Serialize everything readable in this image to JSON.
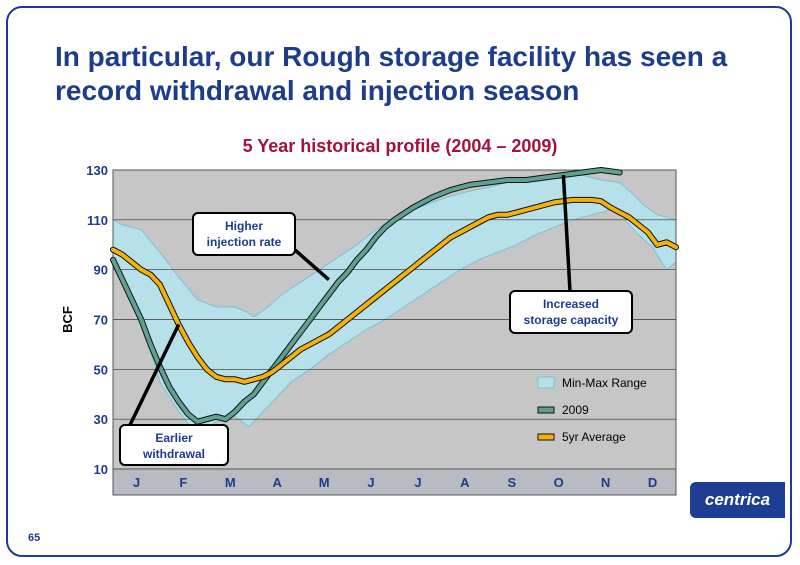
{
  "slide": {
    "title": "In particular, our Rough storage facility has seen a record withdrawal and injection season",
    "page_number": "65",
    "logo_text": "centrica"
  },
  "colors": {
    "accent": "#1d3c8c",
    "chart_title": "#a4123a",
    "plot_bg": "#c6c6c6",
    "range_fill": "#b7e1ea",
    "series_2009": "#5fa191",
    "series_avg": "#f3b00e"
  },
  "chart_data": {
    "type": "line",
    "title": "5 Year historical profile (2004 – 2009)",
    "ylabel": "BCF",
    "xlabel": "",
    "ylim": [
      10,
      130
    ],
    "yticks": [
      10,
      30,
      50,
      70,
      90,
      110,
      130
    ],
    "months": [
      "J",
      "F",
      "M",
      "A",
      "M",
      "J",
      "J",
      "A",
      "S",
      "O",
      "N",
      "D"
    ],
    "xlim": [
      0,
      12
    ],
    "grid": true,
    "legend_position": "bottom-right",
    "legend": [
      {
        "label": "Min-Max Range",
        "marker": "box"
      },
      {
        "label": "2009",
        "marker": "line"
      },
      {
        "label": "5yr Average",
        "marker": "line"
      }
    ],
    "range_max": [
      [
        0,
        110
      ],
      [
        0.2,
        108
      ],
      [
        0.6,
        106
      ],
      [
        1,
        97
      ],
      [
        1.4,
        87
      ],
      [
        1.8,
        78
      ],
      [
        2.2,
        75
      ],
      [
        2.6,
        75
      ],
      [
        2.85,
        73
      ],
      [
        3,
        71
      ],
      [
        3.3,
        75
      ],
      [
        3.6,
        80
      ],
      [
        4,
        85
      ],
      [
        4.4,
        90
      ],
      [
        4.8,
        95
      ],
      [
        5.2,
        100
      ],
      [
        5.6,
        106
      ],
      [
        6,
        111
      ],
      [
        6.4,
        114
      ],
      [
        6.8,
        117
      ],
      [
        7.2,
        119.5
      ],
      [
        7.6,
        121.5
      ],
      [
        8,
        123
      ],
      [
        8.4,
        125
      ],
      [
        8.8,
        126.5
      ],
      [
        9.2,
        127
      ],
      [
        9.6,
        127.5
      ],
      [
        10,
        128
      ],
      [
        10.4,
        126
      ],
      [
        10.8,
        125
      ],
      [
        11.1,
        120
      ],
      [
        11.3,
        116
      ],
      [
        11.6,
        112
      ],
      [
        12,
        110
      ]
    ],
    "range_min": [
      [
        0,
        95
      ],
      [
        0.2,
        85
      ],
      [
        0.5,
        75
      ],
      [
        0.8,
        57
      ],
      [
        1,
        45
      ],
      [
        1.3,
        36
      ],
      [
        1.6,
        28
      ],
      [
        2,
        26
      ],
      [
        2.2,
        29
      ],
      [
        2.4,
        31
      ],
      [
        2.6,
        31
      ],
      [
        2.9,
        27
      ],
      [
        3.1,
        31
      ],
      [
        3.4,
        37
      ],
      [
        3.8,
        45
      ],
      [
        4.2,
        50
      ],
      [
        4.6,
        56
      ],
      [
        5,
        61
      ],
      [
        5.4,
        66
      ],
      [
        5.8,
        70
      ],
      [
        6.2,
        75
      ],
      [
        6.6,
        80
      ],
      [
        7,
        85
      ],
      [
        7.4,
        90
      ],
      [
        7.8,
        94
      ],
      [
        8.2,
        97
      ],
      [
        8.6,
        100
      ],
      [
        9,
        104
      ],
      [
        9.4,
        107
      ],
      [
        9.8,
        110
      ],
      [
        10.2,
        112
      ],
      [
        10.6,
        114
      ],
      [
        10.8,
        113
      ],
      [
        11,
        108
      ],
      [
        11.2,
        104
      ],
      [
        11.5,
        99
      ],
      [
        11.8,
        90
      ],
      [
        12,
        93
      ]
    ],
    "series": [
      {
        "name": "2009",
        "color": "#5fa191",
        "points": [
          [
            0,
            94
          ],
          [
            0.2,
            86
          ],
          [
            0.4,
            78
          ],
          [
            0.6,
            70
          ],
          [
            0.8,
            60
          ],
          [
            1,
            51
          ],
          [
            1.2,
            43
          ],
          [
            1.4,
            37
          ],
          [
            1.6,
            32
          ],
          [
            1.8,
            29
          ],
          [
            2,
            30
          ],
          [
            2.2,
            31
          ],
          [
            2.4,
            30
          ],
          [
            2.6,
            33
          ],
          [
            2.8,
            37
          ],
          [
            3,
            40
          ],
          [
            3.2,
            45
          ],
          [
            3.4,
            50
          ],
          [
            3.6,
            55
          ],
          [
            3.8,
            60
          ],
          [
            4,
            65
          ],
          [
            4.2,
            70
          ],
          [
            4.4,
            75
          ],
          [
            4.6,
            80
          ],
          [
            4.8,
            85
          ],
          [
            5,
            89
          ],
          [
            5.2,
            94
          ],
          [
            5.4,
            98
          ],
          [
            5.6,
            103
          ],
          [
            5.8,
            107
          ],
          [
            6,
            110
          ],
          [
            6.4,
            115
          ],
          [
            6.8,
            119
          ],
          [
            7.2,
            122
          ],
          [
            7.6,
            124
          ],
          [
            8,
            125
          ],
          [
            8.4,
            126
          ],
          [
            8.8,
            126
          ],
          [
            9.2,
            127
          ],
          [
            9.6,
            128
          ],
          [
            10,
            129
          ],
          [
            10.4,
            130
          ],
          [
            10.8,
            129
          ]
        ]
      },
      {
        "name": "5yr Average",
        "color": "#f3b00e",
        "points": [
          [
            0,
            98
          ],
          [
            0.2,
            96
          ],
          [
            0.4,
            93
          ],
          [
            0.6,
            90
          ],
          [
            0.8,
            88
          ],
          [
            1,
            84
          ],
          [
            1.2,
            76
          ],
          [
            1.4,
            68
          ],
          [
            1.6,
            61
          ],
          [
            1.8,
            55
          ],
          [
            2,
            50
          ],
          [
            2.2,
            47
          ],
          [
            2.4,
            46
          ],
          [
            2.6,
            46
          ],
          [
            2.8,
            45
          ],
          [
            3,
            46
          ],
          [
            3.2,
            47
          ],
          [
            3.4,
            49
          ],
          [
            3.6,
            52
          ],
          [
            3.8,
            55
          ],
          [
            4,
            58
          ],
          [
            4.2,
            60
          ],
          [
            4.4,
            62
          ],
          [
            4.6,
            64
          ],
          [
            4.8,
            67
          ],
          [
            5,
            70
          ],
          [
            5.2,
            73
          ],
          [
            5.4,
            76
          ],
          [
            5.6,
            79
          ],
          [
            5.8,
            82
          ],
          [
            6,
            85
          ],
          [
            6.2,
            88
          ],
          [
            6.4,
            91
          ],
          [
            6.6,
            94
          ],
          [
            6.8,
            97
          ],
          [
            7,
            100
          ],
          [
            7.2,
            103
          ],
          [
            7.4,
            105
          ],
          [
            7.6,
            107
          ],
          [
            7.8,
            109
          ],
          [
            8,
            111
          ],
          [
            8.2,
            112
          ],
          [
            8.4,
            112
          ],
          [
            8.6,
            113
          ],
          [
            8.8,
            114
          ],
          [
            9,
            115
          ],
          [
            9.2,
            116
          ],
          [
            9.4,
            117
          ],
          [
            9.6,
            117.5
          ],
          [
            9.8,
            118
          ],
          [
            10,
            118
          ],
          [
            10.2,
            118
          ],
          [
            10.4,
            117.5
          ],
          [
            10.6,
            115
          ],
          [
            10.8,
            113
          ],
          [
            11,
            111
          ],
          [
            11.2,
            108
          ],
          [
            11.4,
            105
          ],
          [
            11.6,
            100
          ],
          [
            11.8,
            101
          ],
          [
            12,
            99
          ]
        ]
      }
    ],
    "annotations": [
      {
        "text_lines": [
          "Higher",
          "injection rate"
        ],
        "target": [
          4.6,
          86
        ]
      },
      {
        "text_lines": [
          "Increased",
          "storage capacity"
        ],
        "target": [
          9.6,
          128
        ]
      },
      {
        "text_lines": [
          "Earlier",
          "withdrawal"
        ],
        "target": [
          1.4,
          68
        ]
      }
    ]
  }
}
